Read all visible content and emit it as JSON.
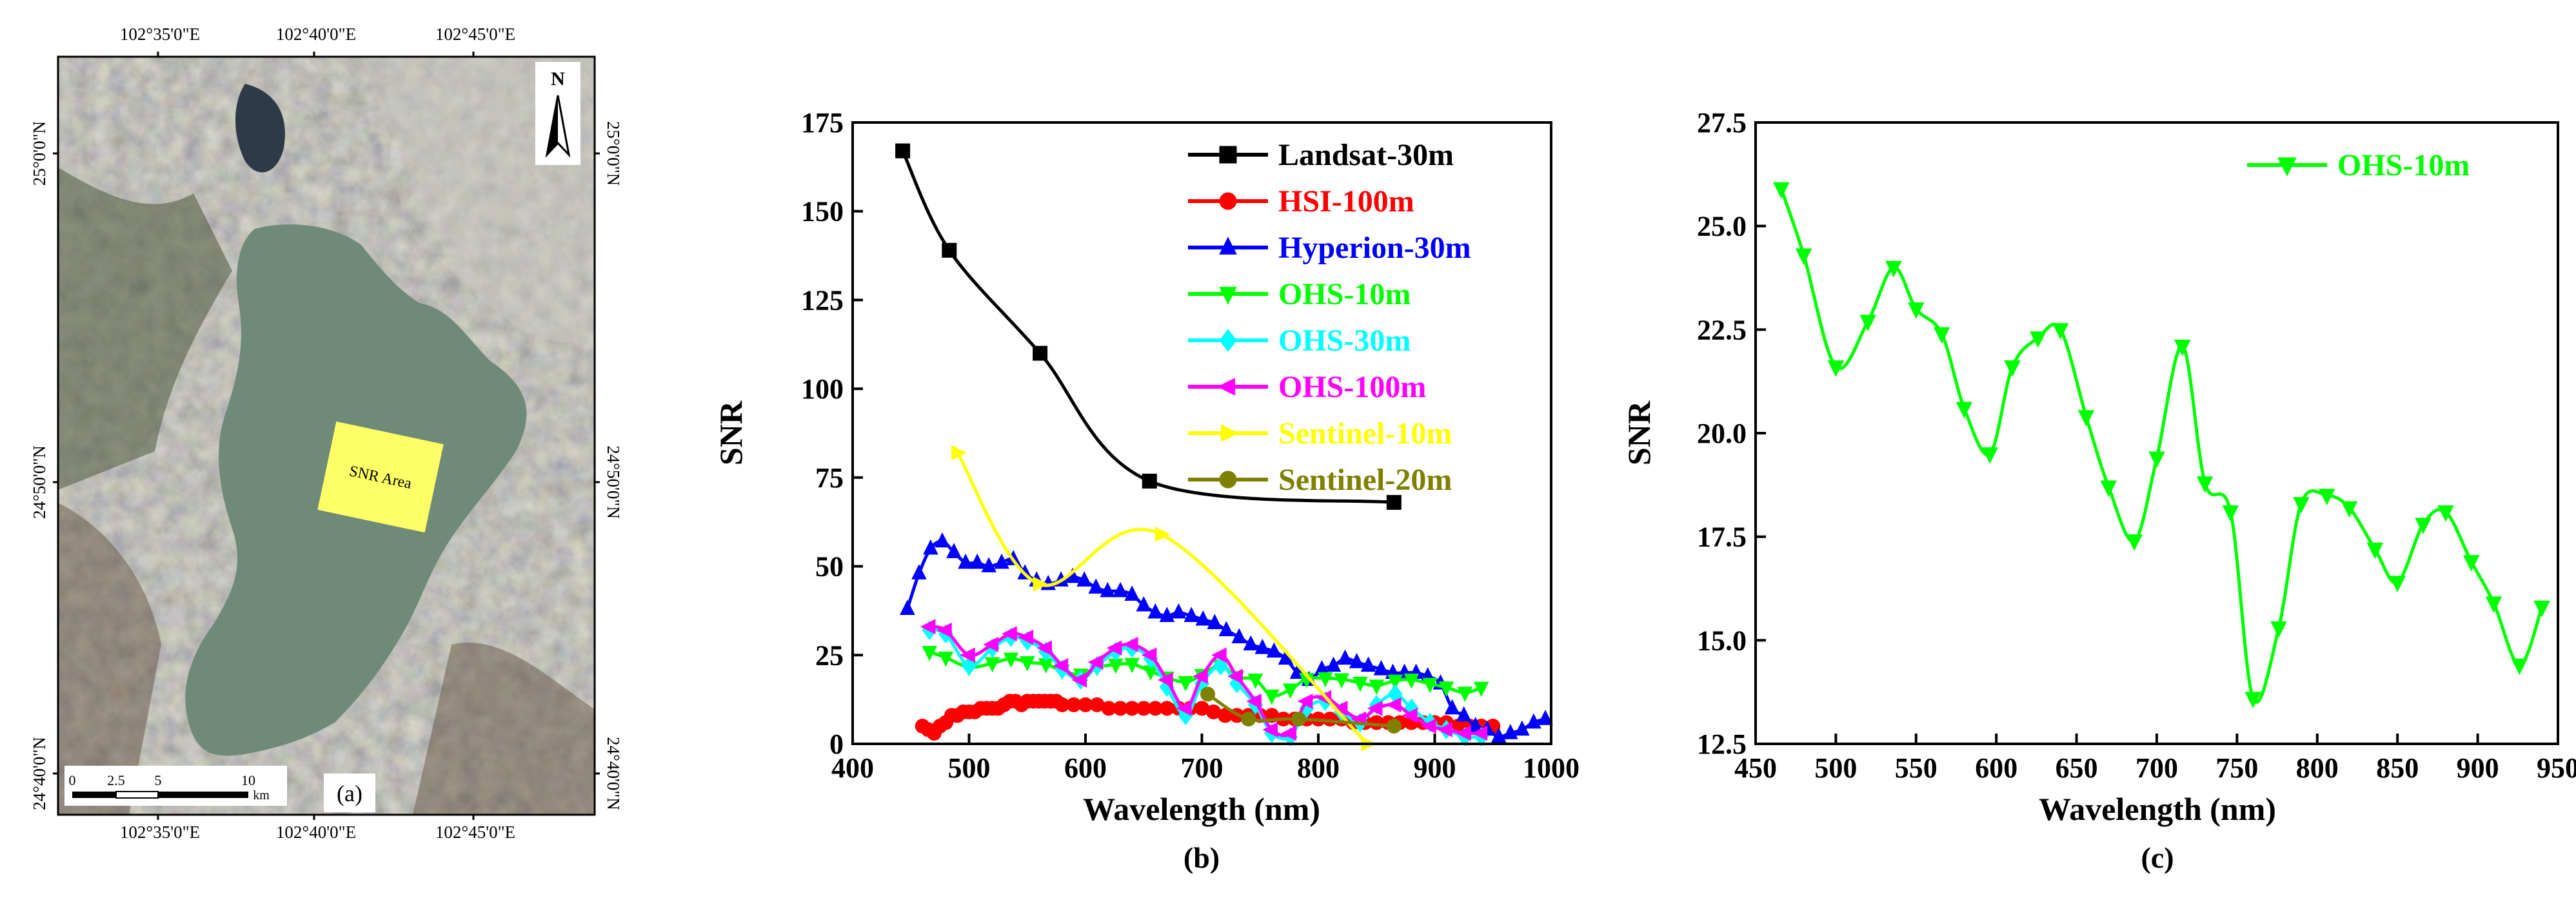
{
  "panel_a": {
    "label": "(a)",
    "top_lon_labels": [
      "102°35'0\"E",
      "102°40'0\"E",
      "102°45'0\"E"
    ],
    "bottom_lon_labels": [
      "102°35'0\"E",
      "102°40'0\"E",
      "102°45'0\"E"
    ],
    "left_lat_labels": [
      "25°0'0\"N",
      "24°50'0\"N",
      "24°40'0\"N"
    ],
    "right_lat_labels": [
      "25°0'0\"N",
      "24°50'0\"N",
      "24°40'0\"N"
    ],
    "north": "N",
    "snr_area_label": "SNR Area",
    "scale_ticks": [
      "0",
      "2.5",
      "5",
      "10"
    ],
    "scale_unit": "km"
  },
  "colors": {
    "Landsat-30m": "#000000",
    "HSI-100m": "#ff0000",
    "Hyperion-30m": "#0000ff",
    "OHS-10m": "#00ff00",
    "OHS-30m": "#00ffff",
    "OHS-100m": "#ff00ff",
    "Sentinel-10m": "#ffff00",
    "Sentinel-20m": "#808000"
  },
  "chart_data": [
    {
      "panel": "(b)",
      "type": "line",
      "xlabel": "Wavelength (nm)",
      "ylabel": "SNR",
      "xlim": [
        400,
        1000
      ],
      "ylim": [
        0,
        175
      ],
      "xticks": [
        400,
        500,
        600,
        700,
        800,
        900,
        1000
      ],
      "yticks": [
        0,
        25,
        50,
        75,
        100,
        125,
        150,
        175
      ],
      "legend_position": "top-right",
      "series": [
        {
          "name": "Landsat-30m",
          "marker": "square",
          "x": [
            443,
            483,
            561,
            655,
            865
          ],
          "y": [
            167,
            139,
            110,
            74,
            68
          ]
        },
        {
          "name": "HSI-100m",
          "marker": "circle",
          "x": [
            460,
            465,
            470,
            475,
            480,
            485,
            490,
            495,
            500,
            505,
            510,
            515,
            520,
            525,
            530,
            535,
            540,
            545,
            550,
            555,
            560,
            565,
            570,
            575,
            580,
            590,
            600,
            610,
            620,
            630,
            640,
            650,
            660,
            670,
            680,
            690,
            700,
            710,
            720,
            730,
            740,
            750,
            760,
            770,
            780,
            790,
            800,
            810,
            820,
            830,
            840,
            850,
            860,
            870,
            880,
            890,
            900,
            910,
            920,
            930,
            940,
            950
          ],
          "y": [
            5,
            4,
            3,
            5,
            6,
            8,
            8,
            9,
            9,
            9,
            10,
            10,
            10,
            10,
            11,
            12,
            12,
            11,
            12,
            12,
            12,
            12,
            12,
            12,
            11,
            11,
            11,
            11,
            10,
            10,
            10,
            10,
            10,
            10,
            10,
            10,
            10,
            9,
            8,
            8,
            8,
            8,
            8,
            7,
            7,
            7,
            7,
            7,
            7,
            6,
            6,
            6,
            6,
            6,
            6,
            6,
            6,
            6,
            5,
            5,
            5,
            5
          ]
        },
        {
          "name": "Hyperion-30m",
          "marker": "triangle-up",
          "x": [
            447,
            457,
            467,
            477,
            487,
            497,
            507,
            517,
            528,
            538,
            548,
            558,
            568,
            579,
            589,
            599,
            609,
            619,
            630,
            640,
            650,
            660,
            670,
            680,
            691,
            701,
            711,
            721,
            732,
            742,
            752,
            762,
            772,
            782,
            792,
            803,
            813,
            823,
            833,
            843,
            854,
            864,
            874,
            884,
            894,
            905,
            915,
            925,
            935,
            945,
            955,
            965,
            975,
            985,
            995
          ],
          "y": [
            38,
            48,
            55,
            57,
            54,
            51,
            51,
            50,
            51,
            52,
            48,
            46,
            45,
            46,
            47,
            46,
            44,
            43,
            43,
            42,
            39,
            37,
            36,
            37,
            36,
            35,
            34,
            32,
            30,
            28,
            27,
            26,
            24,
            20,
            18,
            21,
            22,
            24,
            23,
            22,
            21,
            20,
            20,
            20,
            19,
            17,
            10,
            8,
            5,
            4,
            2,
            3,
            4,
            6,
            7
          ]
        },
        {
          "name": "OHS-10m",
          "marker": "triangle-down",
          "x": [
            466,
            480,
            500,
            520,
            536,
            550,
            566,
            580,
            596,
            610,
            626,
            640,
            656,
            670,
            686,
            700,
            716,
            730,
            746,
            760,
            776,
            790,
            806,
            820,
            836,
            850,
            866,
            880,
            896,
            910,
            926,
            940
          ],
          "y": [
            25.9,
            24.3,
            21.6,
            22.7,
            24.0,
            23.0,
            22.4,
            20.6,
            19.5,
            21.6,
            22.3,
            22.5,
            20.4,
            18.7,
            17.4,
            19.4,
            22.1,
            18.8,
            18.1,
            13.6,
            15.3,
            18.3,
            18.5,
            18.2,
            17.2,
            16.4,
            17.8,
            18.1,
            16.9,
            15.9,
            14.4,
            15.8
          ]
        },
        {
          "name": "OHS-30m",
          "marker": "diamond",
          "x": [
            466,
            480,
            500,
            520,
            536,
            550,
            566,
            580,
            596,
            610,
            626,
            640,
            656,
            670,
            686,
            700,
            716,
            730,
            746,
            760,
            776,
            790,
            806,
            820,
            836,
            850,
            866,
            880,
            896,
            910,
            926,
            940
          ],
          "y": [
            32,
            31,
            22,
            27,
            30,
            29,
            26,
            21,
            18,
            22,
            26,
            27,
            24,
            16,
            8,
            17,
            22,
            17,
            11,
            3,
            2,
            10,
            12,
            9,
            6,
            11,
            14,
            10,
            6,
            4,
            2,
            2
          ]
        },
        {
          "name": "OHS-100m",
          "marker": "triangle-left",
          "x": [
            466,
            480,
            500,
            520,
            536,
            550,
            566,
            580,
            596,
            610,
            626,
            640,
            656,
            670,
            686,
            700,
            716,
            730,
            746,
            760,
            776,
            790,
            806,
            820,
            836,
            850,
            866,
            880,
            896,
            910,
            926,
            940
          ],
          "y": [
            33,
            32,
            25,
            28,
            31,
            30,
            27,
            22,
            18,
            23,
            27,
            28,
            25,
            18,
            10,
            19,
            25,
            19,
            12,
            4,
            3,
            12,
            13,
            10,
            7,
            10,
            11,
            8,
            5,
            4,
            3,
            3
          ]
        },
        {
          "name": "Sentinel-10m",
          "marker": "triangle-right",
          "x": [
            490,
            560,
            665,
            842
          ],
          "y": [
            82,
            45,
            59,
            0
          ]
        },
        {
          "name": "Sentinel-20m",
          "marker": "circle",
          "x": [
            705,
            740,
            783,
            865
          ],
          "y": [
            14,
            7,
            7,
            5
          ]
        }
      ]
    },
    {
      "panel": "(c)",
      "type": "line",
      "xlabel": "Wavelength (nm)",
      "ylabel": "SNR",
      "xlim": [
        450,
        950
      ],
      "ylim": [
        12.5,
        27.5
      ],
      "xticks": [
        450,
        500,
        550,
        600,
        650,
        700,
        750,
        800,
        850,
        900,
        950
      ],
      "yticks": [
        "12.5",
        "15.0",
        "17.5",
        "20.0",
        "22.5",
        "25.0",
        "27.5"
      ],
      "legend_position": "top-right",
      "series": [
        {
          "name": "OHS-10m",
          "marker": "triangle-down",
          "x": [
            466,
            480,
            500,
            520,
            536,
            550,
            566,
            580,
            596,
            610,
            626,
            640,
            656,
            670,
            686,
            700,
            716,
            730,
            746,
            760,
            776,
            790,
            806,
            820,
            836,
            850,
            866,
            880,
            896,
            910,
            926,
            940
          ],
          "y": [
            25.9,
            24.3,
            21.6,
            22.7,
            24.0,
            23.0,
            22.4,
            20.6,
            19.5,
            21.6,
            22.3,
            22.5,
            20.4,
            18.7,
            17.4,
            19.4,
            22.1,
            18.8,
            18.1,
            13.6,
            15.3,
            18.3,
            18.5,
            18.2,
            17.2,
            16.4,
            17.8,
            18.1,
            16.9,
            15.9,
            14.4,
            15.8
          ]
        }
      ]
    }
  ]
}
